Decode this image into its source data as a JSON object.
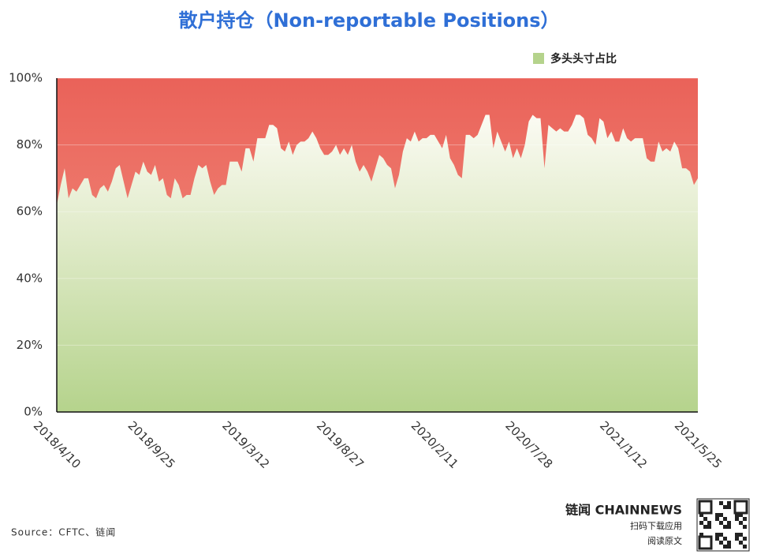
{
  "chart_data": {
    "type": "area",
    "title": "散户持仓（Non-reportable Positions）",
    "source": "Source：CFTC、链闻",
    "brand": {
      "name": "链闻 CHAINNEWS",
      "line1": "扫码下载应用",
      "line2": "阅读原文"
    },
    "categories": [
      "2018/4/10",
      null,
      null,
      null,
      null,
      null,
      null,
      null,
      null,
      null,
      null,
      null,
      null,
      null,
      null,
      null,
      null,
      null,
      null,
      null,
      null,
      null,
      null,
      null,
      "2018/9/25",
      null,
      null,
      null,
      null,
      null,
      null,
      null,
      null,
      null,
      null,
      null,
      null,
      null,
      null,
      null,
      null,
      null,
      null,
      null,
      null,
      null,
      null,
      null,
      "2019/3/12",
      null,
      null,
      null,
      null,
      null,
      null,
      null,
      null,
      null,
      null,
      null,
      null,
      null,
      null,
      null,
      null,
      null,
      null,
      null,
      null,
      null,
      null,
      null,
      "2019/8/27",
      null,
      null,
      null,
      null,
      null,
      null,
      null,
      null,
      null,
      null,
      null,
      null,
      null,
      null,
      null,
      null,
      null,
      null,
      null,
      null,
      null,
      null,
      null,
      "2020/2/11",
      null,
      null,
      null,
      null,
      null,
      null,
      null,
      null,
      null,
      null,
      null,
      null,
      null,
      null,
      null,
      null,
      null,
      null,
      null,
      null,
      null,
      null,
      null,
      "2020/7/28",
      null,
      null,
      null,
      null,
      null,
      null,
      null,
      null,
      null,
      null,
      null,
      null,
      null,
      null,
      null,
      null,
      null,
      null,
      null,
      null,
      null,
      null,
      null,
      "2021/1/12",
      null,
      null,
      null,
      null,
      null,
      null,
      null,
      null,
      null,
      null,
      null,
      null,
      null,
      null,
      null,
      null,
      null,
      null,
      "2021/5/25"
    ],
    "series": [
      {
        "name": "多头头寸占比",
        "color": "#b5d38c",
        "values": [
          62,
          68,
          73,
          64,
          67,
          66,
          68,
          70,
          70,
          65,
          64,
          67,
          68,
          66,
          69,
          73,
          74,
          69,
          64,
          68,
          72,
          71,
          75,
          72,
          71,
          74,
          69,
          70,
          65,
          64,
          70,
          68,
          64,
          65,
          65,
          70,
          74,
          73,
          74,
          69,
          65,
          67,
          68,
          68,
          75,
          75,
          75,
          72,
          79,
          79,
          75,
          82,
          82,
          82,
          86,
          86,
          85,
          79,
          78,
          81,
          77,
          80,
          81,
          81,
          82,
          84,
          82,
          79,
          77,
          77,
          78,
          80,
          77,
          79,
          77,
          80,
          75,
          72,
          74,
          72,
          69,
          73,
          77,
          76,
          74,
          73,
          67,
          71,
          78,
          82,
          81,
          84,
          81,
          82,
          82,
          83,
          83,
          81,
          79,
          83,
          76,
          74,
          71,
          70,
          83,
          83,
          82,
          83,
          86,
          89,
          89,
          79,
          84,
          81,
          78,
          81,
          76,
          79,
          76,
          80,
          87,
          89,
          88,
          88,
          73,
          86,
          85,
          84,
          85,
          84,
          84,
          86,
          89,
          89,
          88,
          83,
          82,
          80,
          88,
          87,
          82,
          84,
          81,
          81,
          85,
          82,
          81,
          82,
          82,
          82,
          76,
          75,
          75,
          81,
          78,
          79,
          78,
          81,
          79,
          73,
          73,
          72,
          68,
          70
        ]
      }
    ],
    "ylim": [
      0,
      100
    ],
    "yticks": [
      {
        "value": 0,
        "label": "0%"
      },
      {
        "value": 20,
        "label": "20%"
      },
      {
        "value": 40,
        "label": "40%"
      },
      {
        "value": 60,
        "label": "60%"
      },
      {
        "value": 80,
        "label": "80%"
      },
      {
        "value": 100,
        "label": "100%"
      }
    ],
    "grid": true
  }
}
